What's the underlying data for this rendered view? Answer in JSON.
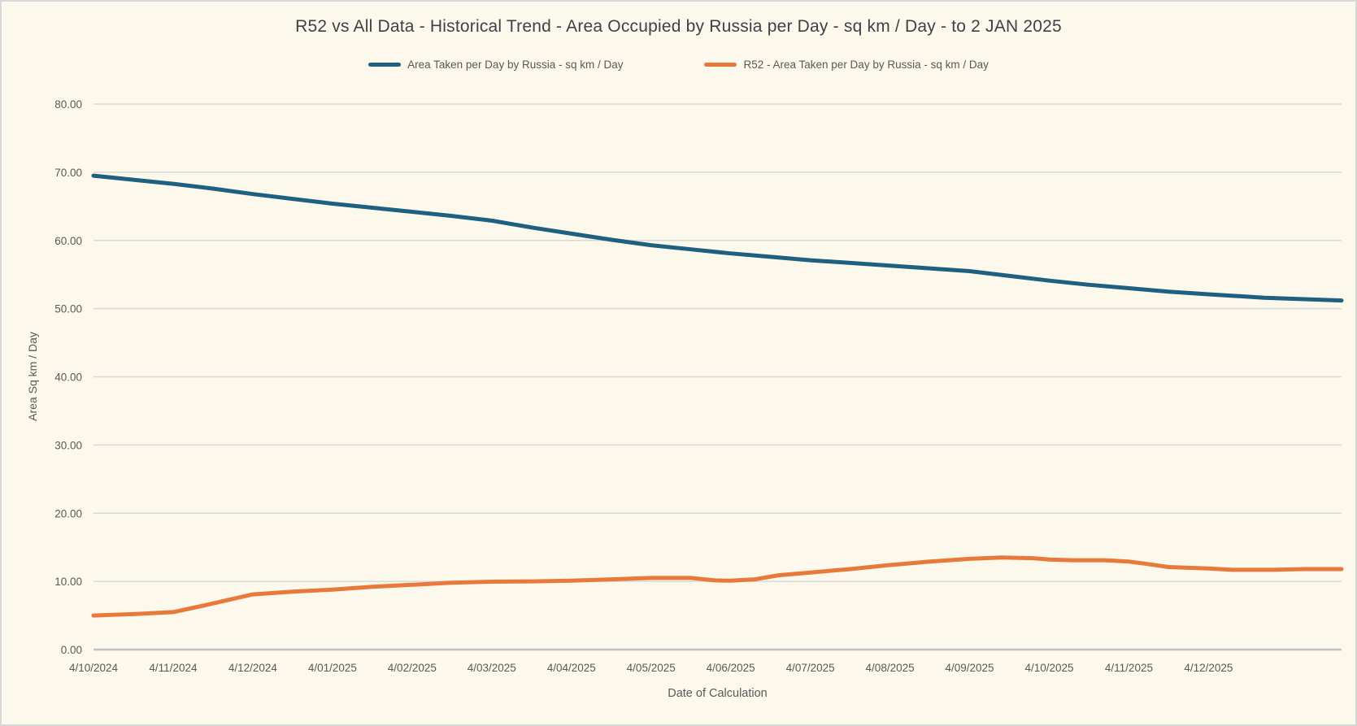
{
  "chart_data": {
    "type": "line",
    "title": "R52 vs All Data - Historical Trend - Area Occupied by Russia per Day - sq km / Day - to 2 JAN 2025",
    "xlabel": "Date of Calculation",
    "ylabel": "Area Sq km / Day",
    "ylim": [
      0,
      80
    ],
    "grid": true,
    "legend_position": "top",
    "background_color": "#FDF8EC",
    "gridline_color": "#D9D9D9",
    "axisline_color": "#C2C2C2",
    "text_color": "#595959",
    "y_tick_labels": [
      "0.00",
      "10.00",
      "20.00",
      "30.00",
      "40.00",
      "50.00",
      "60.00",
      "70.00",
      "80.00"
    ],
    "x_tick_labels": [
      "4/10/2024",
      "4/11/2024",
      "4/12/2024",
      "4/01/2025",
      "4/02/2025",
      "4/03/2025",
      "4/04/2025",
      "4/05/2025",
      "4/06/2025",
      "4/07/2025",
      "4/08/2025",
      "4/09/2025",
      "4/10/2025",
      "4/11/2025",
      "4/12/2025"
    ],
    "x_extent_ticks": 15.67,
    "series": [
      {
        "name": "Area Taken per Day by Russia - sq km / Day",
        "color": "#1F5F7F",
        "points": [
          [
            0,
            69.5
          ],
          [
            0.5,
            68.9
          ],
          [
            1,
            68.3
          ],
          [
            1.5,
            67.6
          ],
          [
            2,
            66.8
          ],
          [
            2.5,
            66.1
          ],
          [
            3,
            65.4
          ],
          [
            3.5,
            64.8
          ],
          [
            4,
            64.2
          ],
          [
            4.5,
            63.6
          ],
          [
            5,
            62.9
          ],
          [
            5.5,
            61.9
          ],
          [
            6,
            61.0
          ],
          [
            6.5,
            60.1
          ],
          [
            7,
            59.3
          ],
          [
            7.5,
            58.7
          ],
          [
            8,
            58.1
          ],
          [
            8.5,
            57.6
          ],
          [
            9,
            57.1
          ],
          [
            9.5,
            56.7
          ],
          [
            10,
            56.3
          ],
          [
            10.5,
            55.9
          ],
          [
            11,
            55.5
          ],
          [
            11.5,
            54.8
          ],
          [
            12,
            54.1
          ],
          [
            12.5,
            53.5
          ],
          [
            13,
            53.0
          ],
          [
            13.5,
            52.5
          ],
          [
            14,
            52.1
          ],
          [
            14.7,
            51.6
          ],
          [
            15.67,
            51.2
          ]
        ]
      },
      {
        "name": "R52 - Area Taken per Day by Russia - sq km / Day",
        "color": "#E8793B",
        "points": [
          [
            0,
            5.0
          ],
          [
            0.5,
            5.2
          ],
          [
            1,
            5.5
          ],
          [
            1.4,
            6.5
          ],
          [
            2,
            8.1
          ],
          [
            2.5,
            8.5
          ],
          [
            3,
            8.8
          ],
          [
            3.5,
            9.2
          ],
          [
            4,
            9.5
          ],
          [
            4.5,
            9.8
          ],
          [
            5,
            9.95
          ],
          [
            5.5,
            10.0
          ],
          [
            6,
            10.1
          ],
          [
            6.5,
            10.3
          ],
          [
            7,
            10.5
          ],
          [
            7.5,
            10.5
          ],
          [
            7.8,
            10.15
          ],
          [
            8,
            10.1
          ],
          [
            8.3,
            10.3
          ],
          [
            8.6,
            10.9
          ],
          [
            9,
            11.3
          ],
          [
            9.5,
            11.8
          ],
          [
            10,
            12.4
          ],
          [
            10.5,
            12.9
          ],
          [
            11,
            13.3
          ],
          [
            11.4,
            13.5
          ],
          [
            11.8,
            13.4
          ],
          [
            12,
            13.2
          ],
          [
            12.3,
            13.1
          ],
          [
            12.7,
            13.1
          ],
          [
            13,
            12.9
          ],
          [
            13.2,
            12.6
          ],
          [
            13.5,
            12.1
          ],
          [
            14,
            11.9
          ],
          [
            14.3,
            11.7
          ],
          [
            14.8,
            11.7
          ],
          [
            15.2,
            11.8
          ],
          [
            15.67,
            11.8
          ]
        ]
      }
    ]
  }
}
